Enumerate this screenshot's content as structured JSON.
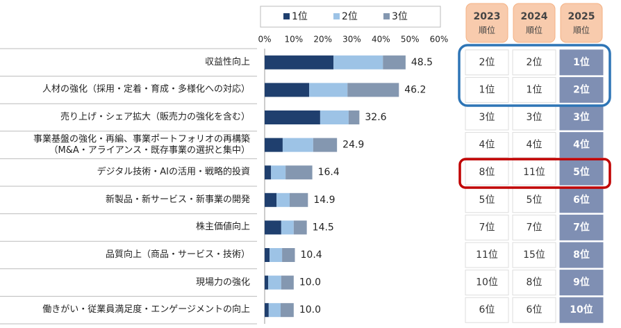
{
  "chart_data": {
    "type": "stacked-barh",
    "categories": [
      "収益性向上",
      "人材の強化（採用・定着・育成・多様化への対応）",
      "売り上げ・シェア拡大（販売力の強化を含む）",
      "事業基盤の強化・再編、事業ポートフォリオの再構築\n（M&A・アライアンス・既存事業の選択と集中）",
      "デジタル技術・AIの活用・戦略的投資",
      "新製品・新サービス・新事業の開発",
      "株主価値向上",
      "品質向上（商品・サービス・技術）",
      "現場力の強化",
      "働きがい・従業員満足度・エンゲージメントの向上"
    ],
    "series": [
      {
        "name": "1位",
        "color": "#1f3f6e",
        "values": [
          23.7,
          15.3,
          19.1,
          6.2,
          2.2,
          4.1,
          5.7,
          1.7,
          1.2,
          1.4
        ]
      },
      {
        "name": "2位",
        "color": "#9dc3e6",
        "values": [
          17.0,
          13.2,
          9.8,
          10.5,
          5.0,
          4.5,
          4.3,
          4.3,
          4.5,
          4.1
        ]
      },
      {
        "name": "3位",
        "color": "#8497b0",
        "values": [
          7.8,
          17.7,
          3.7,
          8.2,
          9.2,
          6.3,
          4.5,
          4.4,
          4.3,
          4.5
        ]
      }
    ],
    "totals": {
      "values": [
        48.5,
        46.2,
        32.6,
        24.9,
        16.4,
        14.9,
        14.5,
        10.4,
        10.0,
        10.0
      ],
      "value_labels": [
        "48.5",
        "46.2",
        "32.6",
        "24.9",
        "16.4",
        "14.9",
        "14.5",
        "10.4",
        "10.0",
        "10.0"
      ]
    },
    "xlim": [
      0,
      60
    ],
    "xticks": [
      {
        "value": 0,
        "label": "0%"
      },
      {
        "value": 10,
        "label": "10%"
      },
      {
        "value": 20,
        "label": "20%"
      },
      {
        "value": 30,
        "label": "30%"
      },
      {
        "value": 40,
        "label": "40%"
      },
      {
        "value": 50,
        "label": "50%"
      },
      {
        "value": 60,
        "label": "60%"
      }
    ],
    "legend": "top"
  },
  "rank_table": {
    "headers": [
      {
        "year": "2023",
        "label": "順位"
      },
      {
        "year": "2024",
        "label": "順位"
      },
      {
        "year": "2025",
        "label": "順位"
      }
    ],
    "rows": [
      [
        "2位",
        "2位",
        "1位"
      ],
      [
        "1位",
        "1位",
        "2位"
      ],
      [
        "3位",
        "3位",
        "3位"
      ],
      [
        "4位",
        "4位",
        "4位"
      ],
      [
        "8位",
        "11位",
        "5位"
      ],
      [
        "5位",
        "5位",
        "6位"
      ],
      [
        "7位",
        "7位",
        "7位"
      ],
      [
        "11位",
        "15位",
        "8位"
      ],
      [
        "10位",
        "8位",
        "9位"
      ],
      [
        "6位",
        "6位",
        "10位"
      ]
    ]
  }
}
